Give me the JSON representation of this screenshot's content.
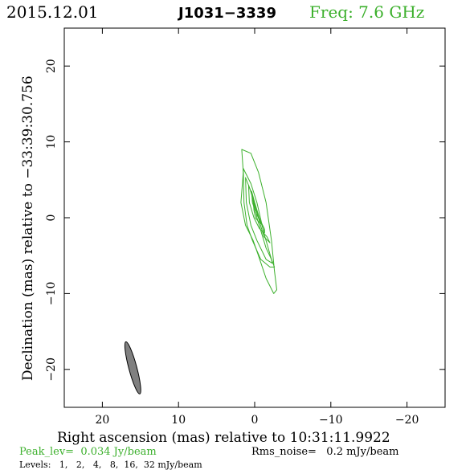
{
  "header": {
    "date": "2015.12.01",
    "source": "J1031−3339",
    "freq": "Freq: 7.6 GHz"
  },
  "footer": {
    "peak": "Peak_lev=  0.034 Jy/beam",
    "rms": "Rms_noise=   0.2 mJy/beam",
    "levels": "Levels:   1,   2,   4,   8,  16,  32 mJy/beam"
  },
  "colors": {
    "contour": "#3cb02c",
    "beam_fill": "#808080",
    "frame": "#000000"
  },
  "chart_data": {
    "type": "contour",
    "xlabel": "Right ascension (mas) relative to 10:31:11.9922",
    "ylabel": "Declination (mas) relative to −33:39:30.756",
    "xlim": [
      25,
      -25
    ],
    "ylim": [
      -25,
      25
    ],
    "x_ticks": [
      20,
      10,
      0,
      -10,
      -20
    ],
    "x_tick_labels": [
      "20",
      "10",
      "0",
      "−10",
      "−20"
    ],
    "y_ticks": [
      20,
      10,
      0,
      -10,
      -20
    ],
    "y_tick_labels": [
      "20",
      "10",
      "0",
      "−10",
      "−20"
    ],
    "levels_mJy": [
      1,
      2,
      4,
      8,
      16,
      32
    ],
    "contours": [
      [
        [
          1.7,
          9
        ],
        [
          0.5,
          8.5
        ],
        [
          -0.5,
          6
        ],
        [
          -1.5,
          2
        ],
        [
          -2.2,
          -3
        ],
        [
          -2.6,
          -7
        ],
        [
          -2.9,
          -9.5
        ],
        [
          -2.5,
          -10
        ],
        [
          -1.5,
          -8
        ],
        [
          -0.5,
          -5
        ],
        [
          0.2,
          -3
        ],
        [
          1.2,
          -1
        ],
        [
          1.8,
          2
        ],
        [
          1.5,
          6
        ],
        [
          1.7,
          9
        ]
      ],
      [
        [
          1.5,
          6.5
        ],
        [
          0.5,
          4.5
        ],
        [
          -0.3,
          2
        ],
        [
          -1.2,
          -2
        ],
        [
          -2.2,
          -5.5
        ],
        [
          -2.6,
          -6.5
        ],
        [
          -2,
          -6.5
        ],
        [
          -0.8,
          -5.5
        ],
        [
          0.3,
          -3
        ],
        [
          1,
          -1
        ],
        [
          1.4,
          2
        ],
        [
          1.5,
          6.5
        ]
      ],
      [
        [
          1.2,
          5.3
        ],
        [
          0.5,
          3.5
        ],
        [
          -0.3,
          0
        ],
        [
          -1.5,
          -4
        ],
        [
          -2.2,
          -5.5
        ],
        [
          -2.3,
          -6
        ],
        [
          -1.5,
          -5.5
        ],
        [
          -0.3,
          -3
        ],
        [
          0.5,
          -1
        ],
        [
          1.1,
          2
        ],
        [
          1.2,
          5.3
        ]
      ],
      [
        [
          0.8,
          4.3
        ],
        [
          0.2,
          2.5
        ],
        [
          -0.5,
          0
        ],
        [
          -1.2,
          -2.5
        ],
        [
          -2,
          -3.3
        ],
        [
          -1.6,
          -2.5
        ],
        [
          -0.6,
          -1.4
        ],
        [
          0.1,
          0
        ],
        [
          0.7,
          2
        ],
        [
          0.8,
          4.3
        ]
      ],
      [
        [
          0.4,
          3.5
        ],
        [
          0,
          2
        ],
        [
          -0.6,
          0
        ],
        [
          -1.3,
          -2
        ],
        [
          -1.3,
          -1.5
        ],
        [
          -0.8,
          -0.5
        ],
        [
          -0.2,
          0.5
        ],
        [
          0.3,
          2
        ],
        [
          0.4,
          3.5
        ]
      ],
      [
        [
          0.2,
          2.3
        ],
        [
          -0.2,
          1
        ],
        [
          -0.5,
          0
        ],
        [
          -0.8,
          -0.8
        ],
        [
          -0.5,
          -0.5
        ],
        [
          -0.1,
          0
        ],
        [
          0.1,
          1
        ],
        [
          0.2,
          2.3
        ]
      ]
    ],
    "beam": {
      "x": 16,
      "y": -19.8,
      "major": 7.1,
      "minor": 1.05,
      "pa_deg": -15
    }
  }
}
